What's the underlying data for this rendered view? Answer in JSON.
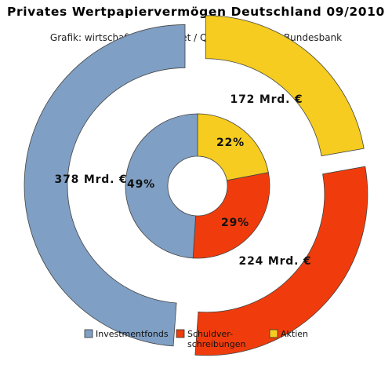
{
  "title": "Privates Wertpapiervermögen Deutschland 09/2010",
  "subtitle": "Grafik: wirtschaftsthemen.net / Quelle: Deutsche Bundesbank",
  "chart_data": {
    "type": "pie",
    "style": "donut-exploded-double-ring",
    "categories": [
      "Investmentfonds",
      "Schuldverschreibungen",
      "Aktien"
    ],
    "legend_labels": [
      [
        "Investmentfonds"
      ],
      [
        "Schuldver-",
        "schreibungen"
      ],
      [
        "Aktien"
      ]
    ],
    "colors": [
      "#7f9fc4",
      "#f03c0c",
      "#f5cc1f"
    ],
    "series": [
      {
        "ring": "inner",
        "values": [
          49,
          29,
          22
        ],
        "labels": [
          "49%",
          "29%",
          "22%"
        ]
      },
      {
        "ring": "outer",
        "values": [
          378,
          224,
          172
        ],
        "labels": [
          "378 Mrd. €",
          "224 Mrd. €",
          "172 Mrd. €"
        ]
      }
    ],
    "legend_position": "bottom"
  }
}
